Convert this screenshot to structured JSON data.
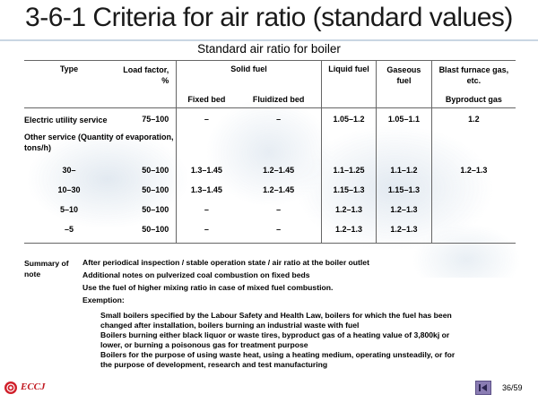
{
  "title": "3-6-1 Criteria for air ratio (standard values)",
  "subtitle": "Standard air ratio for boiler",
  "table": {
    "headers": {
      "type": "Type",
      "load": "Load factor, %",
      "solid": "Solid fuel",
      "fixed": "Fixed bed",
      "fluid": "Fluidized bed",
      "liquid": "Liquid fuel",
      "gas": "Gaseous fuel",
      "blast": "Blast furnace gas, etc.",
      "byproduct": "Byproduct gas"
    },
    "electric": {
      "label": "Electric utility service",
      "load": "75–100",
      "fixed": "–",
      "fluid": "–",
      "liquid": "1.05–1.2",
      "gas": "1.05–1.1",
      "blast": "1.2"
    },
    "other_label": "Other service (Quantity of evaporation, tons/h)",
    "rows": [
      {
        "qty": "30–",
        "load": "50–100",
        "fixed": "1.3–1.45",
        "fluid": "1.2–1.45",
        "liquid": "1.1–1.25",
        "gas": "1.1–1.2",
        "blast": "1.2–1.3"
      },
      {
        "qty": "10–30",
        "load": "50–100",
        "fixed": "1.3–1.45",
        "fluid": "1.2–1.45",
        "liquid": "1.15–1.3",
        "gas": "1.15–1.3",
        "blast": ""
      },
      {
        "qty": "5–10",
        "load": "50–100",
        "fixed": "–",
        "fluid": "–",
        "liquid": "1.2–1.3",
        "gas": "1.2–1.3",
        "blast": ""
      },
      {
        "qty": "–5",
        "load": "50–100",
        "fixed": "–",
        "fluid": "–",
        "liquid": "1.2–1.3",
        "gas": "1.2–1.3",
        "blast": ""
      }
    ]
  },
  "summary": {
    "label": "Summary of note",
    "lines": [
      "After periodical inspection / stable operation state / air ratio at the boiler outlet",
      "Additional notes on pulverized coal combustion on fixed beds",
      "Use the fuel of higher mixing ratio in case of mixed fuel combustion.",
      "Exemption:"
    ],
    "exemption_lines": [
      "Small boilers specified by the Labour Safety and Health Law, boilers for which the fuel has been",
      "changed after installation, boilers burning an industrial waste with fuel",
      "Boilers burning either black liquor or waste tires, byproduct gas of a heating value of 3,800kj or",
      "lower, or burning a poisonous gas for treatment purpose",
      "Boilers for the purpose of using waste heat, using a heating medium, operating unsteadily, or for",
      "the purpose of development, research and test manufacturing"
    ]
  },
  "footer": {
    "logo": "ECCJ",
    "page": "36/59",
    "nav_icon": "first-page-icon"
  },
  "colors": {
    "logo_red": "#d01f2a",
    "nav_button": "#8a7cb3"
  }
}
